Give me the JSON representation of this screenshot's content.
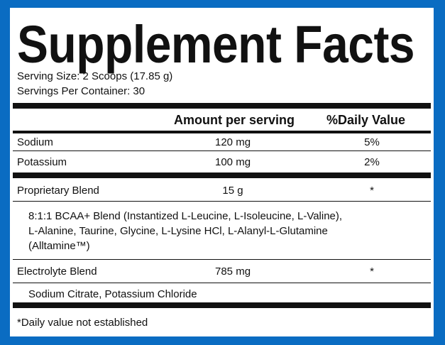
{
  "title": "Supplement Facts",
  "serving_size": "Serving Size: 2 Scoops (17.85 g)",
  "servings_per_container": "Servings Per Container: 30",
  "table": {
    "header": [
      "Amount per serving",
      "%Daily Value"
    ],
    "rows": [
      {
        "name": "Sodium",
        "amount": "120 mg",
        "daily_value": "5%"
      },
      {
        "name": "Potassium",
        "amount": "100 mg",
        "daily_value": "2%"
      },
      {
        "name": "Proprietary Blend",
        "amount": "15 g",
        "daily_value": "*",
        "ingredients": [
          "8:1:1 BCAA+ Blend (Instantized L-Leucine, L-Isoleucine, L-Valine),",
          "L-Alanine, Taurine, Glycine, L-Lysine HCl, L-Alanyl-L-Glutamine",
          "(Alltamine™)"
        ]
      },
      {
        "name": "Electrolyte Blend",
        "amount": "785 mg",
        "daily_value": "*",
        "ingredients": [
          "Sodium Citrate, Potassium Chloride"
        ]
      }
    ]
  },
  "footnote": "*Daily value not established"
}
